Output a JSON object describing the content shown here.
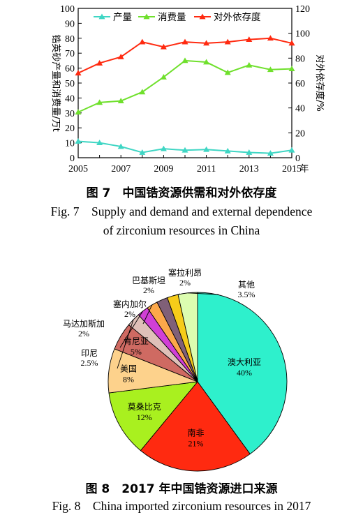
{
  "fig7": {
    "caption_cn": "图 7　中国锆资源供需和对外依存度",
    "caption_en_line1": "Fig. 7　Supply and demand and external dependence",
    "caption_en_line2": "of zirconium resources in China"
  },
  "fig8": {
    "caption_cn": "图 8　2017 年中国锆资源进口来源",
    "caption_en": "Fig. 8　China imported zirconium resources in 2017"
  },
  "chart_data": [
    {
      "type": "line",
      "x": [
        2005,
        2006,
        2007,
        2008,
        2009,
        2010,
        2011,
        2012,
        2013,
        2014,
        2015
      ],
      "x_ticks": [
        "2005",
        "2007",
        "2009",
        "2011",
        "2013",
        "2015"
      ],
      "x_unit": "年",
      "ylabel_left": "锆英砂产量和消费量/万t",
      "ylabel_right": "对外依存度/%",
      "ylim_left": [
        0,
        100
      ],
      "ylim_right": [
        0,
        120
      ],
      "yticks_left": [
        "0",
        "10",
        "20",
        "30",
        "40",
        "50",
        "60",
        "70",
        "80",
        "90",
        "100"
      ],
      "yticks_right": [
        "0",
        "20",
        "40",
        "60",
        "80",
        "100",
        "120"
      ],
      "legend_position": "top",
      "grid": false,
      "series": [
        {
          "name": "产量",
          "axis": "left",
          "color": "#3fd6c4",
          "marker": "triangle",
          "values": [
            11,
            10,
            7.5,
            3.5,
            6,
            5,
            5.5,
            4.5,
            3.5,
            3,
            5
          ]
        },
        {
          "name": "消费量",
          "axis": "left",
          "color": "#6fe02c",
          "marker": "triangle",
          "values": [
            30.5,
            37,
            38,
            44,
            54,
            65,
            64,
            57,
            62,
            59,
            59.5
          ]
        },
        {
          "name": "对外依存度",
          "axis": "right",
          "color": "#ff2a10",
          "marker": "triangle",
          "values": [
            68,
            76,
            81,
            93,
            89,
            93,
            92,
            93,
            95,
            96,
            92
          ]
        }
      ]
    },
    {
      "type": "pie",
      "slices": [
        {
          "label": "澳大利亚",
          "value": 40,
          "value_label": "40%",
          "color": "#2ef0cc"
        },
        {
          "label": "南非",
          "value": 21,
          "value_label": "21%",
          "color": "#ff2a10"
        },
        {
          "label": "莫桑比克",
          "value": 12,
          "value_label": "12%",
          "color": "#a9f01f"
        },
        {
          "label": "美国",
          "value": 8,
          "value_label": "8%",
          "color": "#fdd28c"
        },
        {
          "label": "肯尼亚",
          "value": 5,
          "value_label": "5%",
          "color": "#cf6a62"
        },
        {
          "label": "印尼",
          "value": 2.5,
          "value_label": "2.5%",
          "color": "#dfc0b8"
        },
        {
          "label": "马达加斯加",
          "value": 2,
          "value_label": "2%",
          "color": "#d13fd6"
        },
        {
          "label": "塞内加尔",
          "value": 2,
          "value_label": "2%",
          "color": "#fca84a"
        },
        {
          "label": "巴基斯坦",
          "value": 2,
          "value_label": "2%",
          "color": "#806078"
        },
        {
          "label": "塞拉利昂",
          "value": 2,
          "value_label": "2%",
          "color": "#f6cc1a"
        },
        {
          "label": "其他",
          "value": 3.5,
          "value_label": "3.5%",
          "color": "#dcfdb0"
        }
      ]
    }
  ]
}
